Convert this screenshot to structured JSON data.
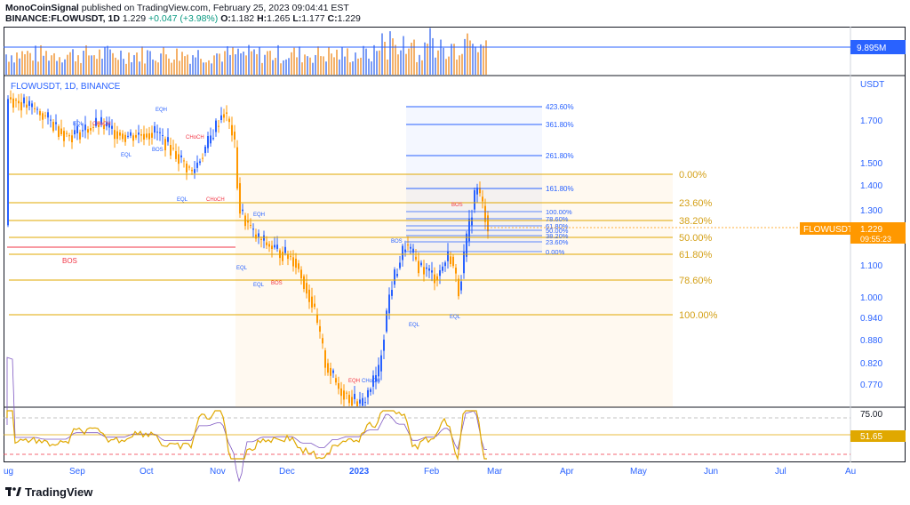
{
  "header": {
    "publisher": "MonoCoinSignal",
    "published_text": "published on TradingView.com, February 25, 2023 09:04:41 EST",
    "symbol": "BINANCE:FLOWUSDT, 1D",
    "last": "1.229",
    "change": "+0.047 (+3.98%)",
    "o_label": "O:",
    "o": "1.182",
    "h_label": "H:",
    "h": "1.265",
    "l_label": "L:",
    "l": "1.177",
    "c_label": "C:",
    "c": "1.229"
  },
  "chart_title": "FLOWUSDT, 1D, BINANCE",
  "currency": "USDT",
  "volume_badge": "9.895M",
  "price_ticks": [
    "1.700",
    "1.500",
    "1.400",
    "1.300",
    "1.229",
    "1.100",
    "1.000",
    "0.940",
    "0.880",
    "0.820",
    "0.770"
  ],
  "last_price_badge": {
    "symbol": "FLOWUSDT",
    "price": "1.229",
    "countdown": "09:55:23"
  },
  "rsi_ticks": [
    "75.00",
    "51.65"
  ],
  "x_ticks": [
    "ug",
    "Sep",
    "Oct",
    "Nov",
    "Dec",
    "2023",
    "Feb",
    "Mar",
    "Apr",
    "May",
    "Jun",
    "Jul",
    "Au"
  ],
  "fib_major": [
    "0.00%",
    "23.60%",
    "38.20%",
    "50.00%",
    "61.80%",
    "78.60%",
    "100.00%"
  ],
  "fib_ext": [
    "423.60%",
    "361.80%",
    "261.80%",
    "161.80%"
  ],
  "fib_minor": [
    "100.00%",
    "78.60%",
    "61.80%",
    "50.00%",
    "38.20%",
    "23.60%",
    "0.00%"
  ],
  "structure_labels": [
    "EQL",
    "CHoCH",
    "EQH",
    "EQL",
    "BOS",
    "CHoCH",
    "EQL",
    "CHoCH",
    "EQH",
    "BOS",
    "EQL",
    "EQL",
    "BOS",
    "EQH",
    "CHoCH",
    "BOS",
    "EQL",
    "BOS",
    "EQL"
  ],
  "footer": {
    "brand": "TradingView"
  },
  "colors": {
    "up": "#2962ff",
    "down": "#ff9800",
    "fib": "#e0a800",
    "fib_text": "#d4a017",
    "ext": "#2962ff",
    "bos": "#f23645",
    "rsi": "#e0a800",
    "rsi_ma": "#7e57c2"
  }
}
